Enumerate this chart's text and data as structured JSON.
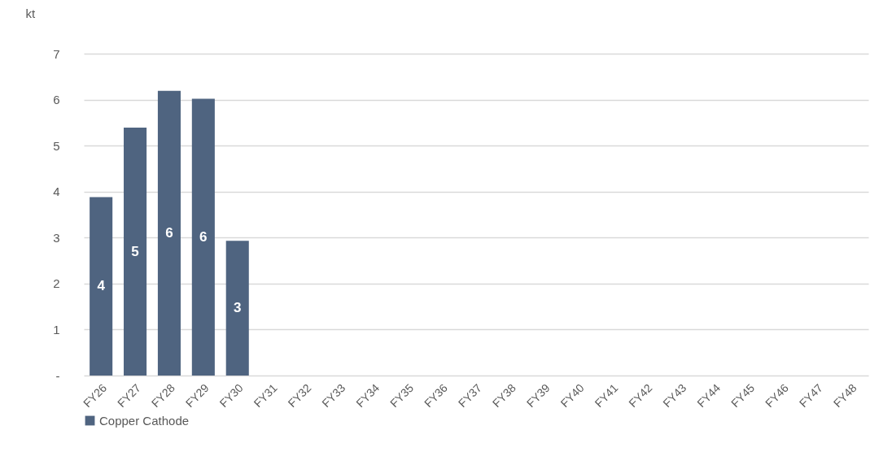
{
  "chart_data": {
    "type": "bar",
    "ylabel": "kt",
    "categories": [
      "FY26",
      "FY27",
      "FY28",
      "FY29",
      "FY30",
      "FY31",
      "FY32",
      "FY33",
      "FY34",
      "FY35",
      "FY36",
      "FY37",
      "FY38",
      "FY39",
      "FY40",
      "FY41",
      "FY42",
      "FY43",
      "FY44",
      "FY45",
      "FY46",
      "FY47",
      "FY48"
    ],
    "series": [
      {
        "name": "Copper Cathode",
        "color": "#4f6480",
        "values": [
          3.88,
          5.39,
          6.19,
          6.02,
          2.93,
          null,
          null,
          null,
          null,
          null,
          null,
          null,
          null,
          null,
          null,
          null,
          null,
          null,
          null,
          null,
          null,
          null,
          null
        ],
        "value_labels": [
          "4",
          "5",
          "6",
          "6",
          "3",
          null,
          null,
          null,
          null,
          null,
          null,
          null,
          null,
          null,
          null,
          null,
          null,
          null,
          null,
          null,
          null,
          null,
          null
        ]
      }
    ],
    "ylim": [
      0,
      7
    ],
    "yticks": [
      {
        "value": 0,
        "label": "-"
      },
      1,
      2,
      3,
      4,
      5,
      6,
      7
    ],
    "grid": "y",
    "legend": "bottom"
  }
}
